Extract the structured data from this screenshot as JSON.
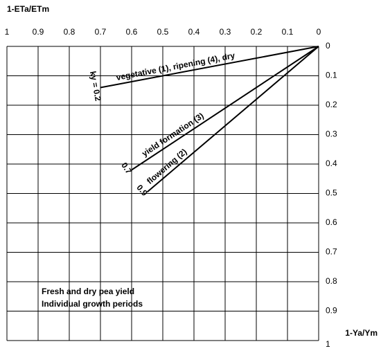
{
  "chart_data": {
    "type": "line",
    "x_label": "1-ETa/ETm",
    "y_label": "1-Ya/Ym",
    "xlim": [
      1,
      0
    ],
    "xticks": [
      1,
      0.9,
      0.8,
      0.7,
      0.6,
      0.5,
      0.4,
      0.3,
      0.2,
      0.1,
      0
    ],
    "ylim": [
      0,
      1
    ],
    "yticks": [
      0,
      0.1,
      0.2,
      0.3,
      0.4,
      0.5,
      0.6,
      0.7,
      0.8,
      0.9,
      1
    ],
    "grid": true,
    "series": [
      {
        "name": "vegetative (1), ripening (4), dry",
        "ky_label": "ky = 0.2",
        "color": "#000000",
        "x": [
          0,
          0.7
        ],
        "values": [
          0,
          0.14
        ]
      },
      {
        "name": "yield formation (3)",
        "ky_label": "0.7",
        "color": "#000000",
        "x": [
          0,
          0.6
        ],
        "values": [
          0,
          0.42
        ]
      },
      {
        "name": "flowering (2)",
        "ky_label": "0.9",
        "color": "#000000",
        "x": [
          0,
          0.55
        ],
        "values": [
          0,
          0.495
        ]
      }
    ],
    "annotations": [
      "Fresh and dry pea yield",
      "Individual growth periods"
    ]
  }
}
